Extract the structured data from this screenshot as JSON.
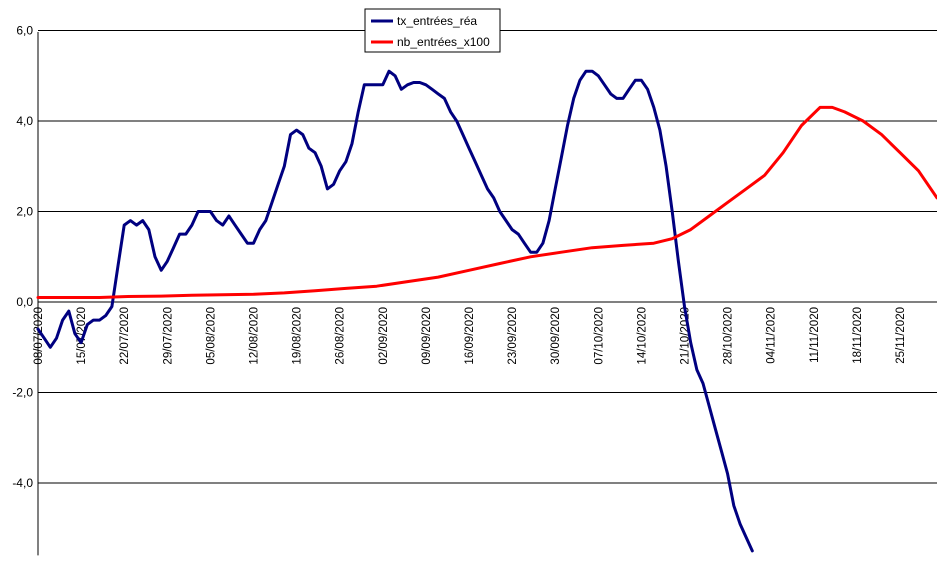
{
  "chart_data": {
    "type": "line",
    "title": "",
    "xlabel": "",
    "ylabel": "",
    "ylim": [
      -5.6,
      6.0
    ],
    "y_ticks": [
      -4.0,
      -2.0,
      0.0,
      2.0,
      4.0,
      6.0
    ],
    "y_tick_labels": [
      "-4,0",
      "-2,0",
      "0,0",
      "2,0",
      "4,0",
      "6,0"
    ],
    "grid": "horizontal",
    "legend_position": "top-center",
    "x_tick_labels": [
      "08/07/2020",
      "15/07/2020",
      "22/07/2020",
      "29/07/2020",
      "05/08/2020",
      "12/08/2020",
      "19/08/2020",
      "26/08/2020",
      "02/09/2020",
      "09/09/2020",
      "16/09/2020",
      "23/09/2020",
      "30/09/2020",
      "07/10/2020",
      "14/10/2020",
      "21/10/2020",
      "28/10/2020",
      "04/11/2020",
      "11/11/2020",
      "18/11/2020",
      "25/11/2020"
    ],
    "x_tick_days": [
      0,
      7,
      14,
      21,
      28,
      35,
      42,
      49,
      56,
      63,
      70,
      77,
      84,
      91,
      98,
      105,
      112,
      119,
      126,
      133,
      140
    ],
    "x_range_days": [
      0,
      146
    ],
    "series": [
      {
        "name": "tx_entrées_réa",
        "color": "#000080",
        "points": [
          [
            0,
            -0.6
          ],
          [
            1,
            -0.8
          ],
          [
            2,
            -1.0
          ],
          [
            3,
            -0.8
          ],
          [
            4,
            -0.4
          ],
          [
            5,
            -0.2
          ],
          [
            6,
            -0.7
          ],
          [
            7,
            -0.9
          ],
          [
            8,
            -0.5
          ],
          [
            9,
            -0.4
          ],
          [
            10,
            -0.4
          ],
          [
            11,
            -0.3
          ],
          [
            12,
            -0.1
          ],
          [
            13,
            0.8
          ],
          [
            14,
            1.7
          ],
          [
            15,
            1.8
          ],
          [
            16,
            1.7
          ],
          [
            17,
            1.8
          ],
          [
            18,
            1.6
          ],
          [
            19,
            1.0
          ],
          [
            20,
            0.7
          ],
          [
            21,
            0.9
          ],
          [
            22,
            1.2
          ],
          [
            23,
            1.5
          ],
          [
            24,
            1.5
          ],
          [
            25,
            1.7
          ],
          [
            26,
            2.0
          ],
          [
            27,
            2.0
          ],
          [
            28,
            2.0
          ],
          [
            29,
            1.8
          ],
          [
            30,
            1.7
          ],
          [
            31,
            1.9
          ],
          [
            32,
            1.7
          ],
          [
            33,
            1.5
          ],
          [
            34,
            1.3
          ],
          [
            35,
            1.3
          ],
          [
            36,
            1.6
          ],
          [
            37,
            1.8
          ],
          [
            38,
            2.2
          ],
          [
            39,
            2.6
          ],
          [
            40,
            3.0
          ],
          [
            41,
            3.7
          ],
          [
            42,
            3.8
          ],
          [
            43,
            3.7
          ],
          [
            44,
            3.4
          ],
          [
            45,
            3.3
          ],
          [
            46,
            3.0
          ],
          [
            47,
            2.5
          ],
          [
            48,
            2.6
          ],
          [
            49,
            2.9
          ],
          [
            50,
            3.1
          ],
          [
            51,
            3.5
          ],
          [
            52,
            4.2
          ],
          [
            53,
            4.8
          ],
          [
            54,
            4.8
          ],
          [
            55,
            4.8
          ],
          [
            56,
            4.8
          ],
          [
            57,
            5.1
          ],
          [
            58,
            5.0
          ],
          [
            59,
            4.7
          ],
          [
            60,
            4.8
          ],
          [
            61,
            4.85
          ],
          [
            62,
            4.85
          ],
          [
            63,
            4.8
          ],
          [
            64,
            4.7
          ],
          [
            65,
            4.6
          ],
          [
            66,
            4.5
          ],
          [
            67,
            4.2
          ],
          [
            68,
            4.0
          ],
          [
            69,
            3.7
          ],
          [
            70,
            3.4
          ],
          [
            71,
            3.1
          ],
          [
            72,
            2.8
          ],
          [
            73,
            2.5
          ],
          [
            74,
            2.3
          ],
          [
            75,
            2.0
          ],
          [
            76,
            1.8
          ],
          [
            77,
            1.6
          ],
          [
            78,
            1.5
          ],
          [
            79,
            1.3
          ],
          [
            80,
            1.1
          ],
          [
            81,
            1.1
          ],
          [
            82,
            1.3
          ],
          [
            83,
            1.8
          ],
          [
            84,
            2.5
          ],
          [
            85,
            3.2
          ],
          [
            86,
            3.9
          ],
          [
            87,
            4.5
          ],
          [
            88,
            4.9
          ],
          [
            89,
            5.1
          ],
          [
            90,
            5.1
          ],
          [
            91,
            5.0
          ],
          [
            92,
            4.8
          ],
          [
            93,
            4.6
          ],
          [
            94,
            4.5
          ],
          [
            95,
            4.5
          ],
          [
            96,
            4.7
          ],
          [
            97,
            4.9
          ],
          [
            98,
            4.9
          ],
          [
            99,
            4.7
          ],
          [
            100,
            4.3
          ],
          [
            101,
            3.8
          ],
          [
            102,
            3.0
          ],
          [
            103,
            2.0
          ],
          [
            104,
            0.9
          ],
          [
            105,
            -0.1
          ],
          [
            106,
            -0.9
          ],
          [
            107,
            -1.5
          ],
          [
            108,
            -1.8
          ],
          [
            109,
            -2.3
          ],
          [
            110,
            -2.8
          ],
          [
            111,
            -3.3
          ],
          [
            112,
            -3.8
          ],
          [
            113,
            -4.5
          ],
          [
            114,
            -4.9
          ],
          [
            115,
            -5.2
          ],
          [
            116,
            -5.5
          ]
        ]
      },
      {
        "name": "nb_entrées_x100",
        "color": "#ff0000",
        "points": [
          [
            0,
            0.1
          ],
          [
            10,
            0.1
          ],
          [
            14,
            0.12
          ],
          [
            20,
            0.13
          ],
          [
            25,
            0.15
          ],
          [
            30,
            0.16
          ],
          [
            35,
            0.17
          ],
          [
            40,
            0.2
          ],
          [
            45,
            0.25
          ],
          [
            50,
            0.3
          ],
          [
            55,
            0.35
          ],
          [
            60,
            0.45
          ],
          [
            65,
            0.55
          ],
          [
            70,
            0.7
          ],
          [
            75,
            0.85
          ],
          [
            80,
            1.0
          ],
          [
            85,
            1.1
          ],
          [
            90,
            1.2
          ],
          [
            95,
            1.25
          ],
          [
            100,
            1.3
          ],
          [
            103,
            1.4
          ],
          [
            106,
            1.6
          ],
          [
            109,
            1.9
          ],
          [
            112,
            2.2
          ],
          [
            115,
            2.5
          ],
          [
            118,
            2.8
          ],
          [
            121,
            3.3
          ],
          [
            124,
            3.9
          ],
          [
            127,
            4.3
          ],
          [
            129,
            4.3
          ],
          [
            131,
            4.2
          ],
          [
            134,
            4.0
          ],
          [
            137,
            3.7
          ],
          [
            140,
            3.3
          ],
          [
            143,
            2.9
          ],
          [
            146,
            2.3
          ]
        ]
      }
    ]
  }
}
